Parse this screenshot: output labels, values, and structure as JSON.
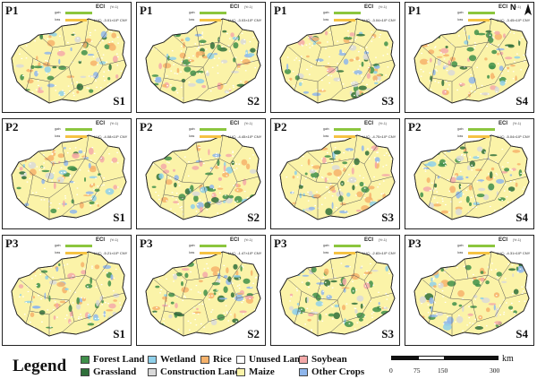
{
  "panels": [
    {
      "p": "P1",
      "s": "S1",
      "luc": "LUC: -3.01×10⁵ CNY"
    },
    {
      "p": "P1",
      "s": "S2",
      "luc": "LUC: -3.03×10⁵ CNY"
    },
    {
      "p": "P1",
      "s": "S3",
      "luc": "LUC: -3.04×10⁵ CNY"
    },
    {
      "p": "P1",
      "s": "S4",
      "luc": "LUC: -3.45×10⁵ CNY"
    },
    {
      "p": "P2",
      "s": "S1",
      "luc": "LUC: -4.08×10⁵ CNY"
    },
    {
      "p": "P2",
      "s": "S2",
      "luc": "LUC: -4.45×10⁵ CNY"
    },
    {
      "p": "P2",
      "s": "S3",
      "luc": "LUC: -4.75×10⁵ CNY"
    },
    {
      "p": "P2",
      "s": "S4",
      "luc": "LUC: -5.04×10⁵ CNY"
    },
    {
      "p": "P3",
      "s": "S1",
      "luc": "LUC: -5.21×10⁵ CNY"
    },
    {
      "p": "P3",
      "s": "S2",
      "luc": "LUC: -1.47×10⁵ CNY"
    },
    {
      "p": "P3",
      "s": "S3",
      "luc": "LUC: -2.83×10⁵ CNY"
    },
    {
      "p": "P3",
      "s": "S4",
      "luc": "LUC: -4.31×10⁵ CNY"
    }
  ],
  "eci_title": "ECI",
  "eci_range": "(Yr-1)",
  "bar_caption_1": "gain",
  "bar_caption_2": "loss",
  "north_label": "N",
  "legend": {
    "title": "Legend",
    "items": [
      {
        "label": "Forest Land",
        "color": "#3f8f4a"
      },
      {
        "label": "Wetland",
        "color": "#8fd0ea"
      },
      {
        "label": "Rice",
        "color": "#f6b26b"
      },
      {
        "label": "Unused Land",
        "color": "#ffffff"
      },
      {
        "label": "Soybean",
        "color": "#f4a9a9"
      },
      {
        "label": "Grassland",
        "color": "#2f6f3a"
      },
      {
        "label": "Construction Land",
        "color": "#d9d9d9"
      },
      {
        "label": "Maize",
        "color": "#fbf3a8"
      },
      {
        "label": "Other Crops",
        "color": "#8fb6ec"
      }
    ]
  },
  "scale": {
    "ticks": [
      "0",
      "75",
      "150",
      "300"
    ],
    "unit": "km"
  }
}
